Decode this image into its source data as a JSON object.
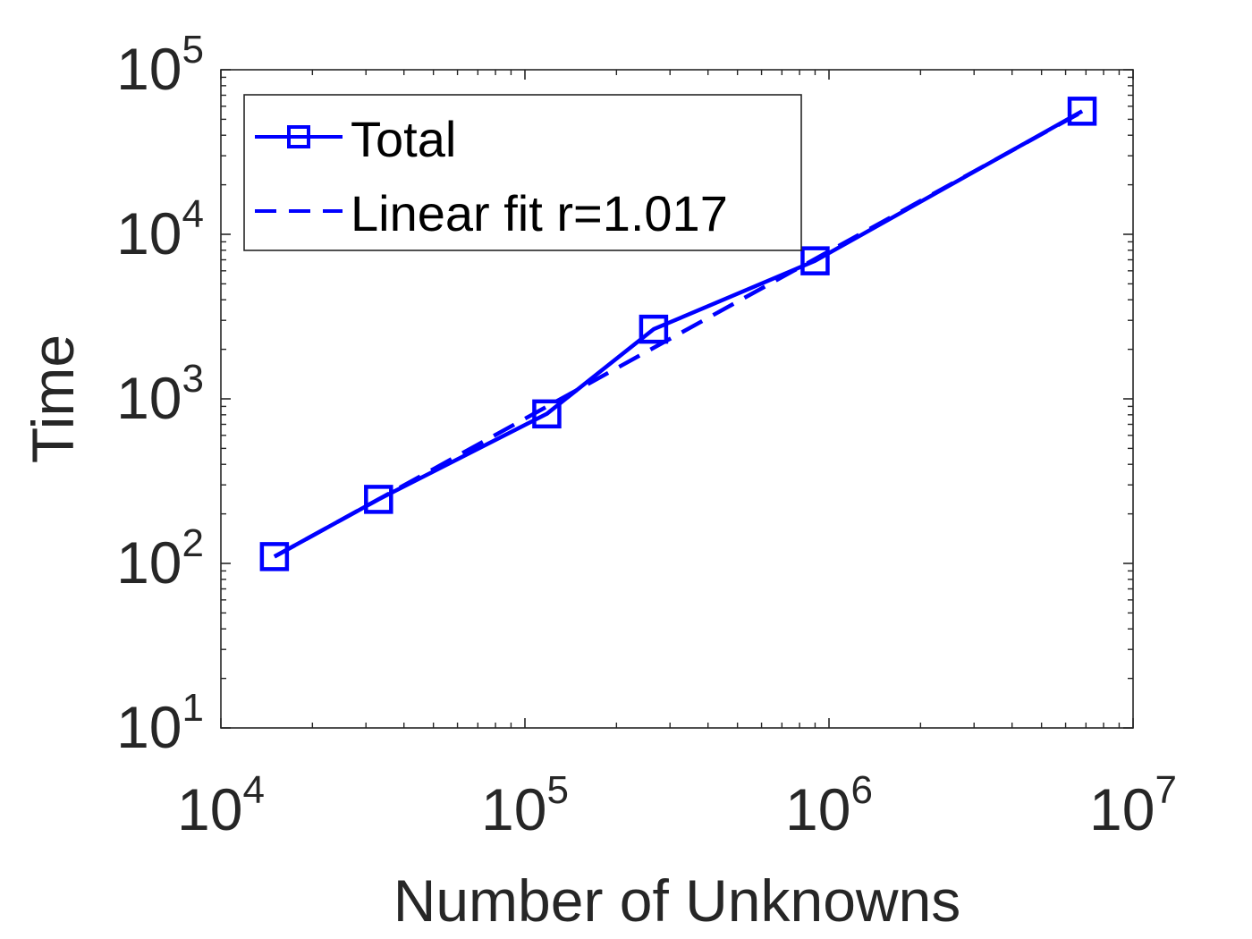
{
  "chart_data": {
    "type": "line",
    "xscale": "log",
    "yscale": "log",
    "xlabel": "Number of Unknowns",
    "ylabel": "Time",
    "xlim": [
      10000,
      10000000
    ],
    "ylim": [
      10,
      100000
    ],
    "xticks": [
      {
        "base": "10",
        "exp": "4",
        "value": 10000
      },
      {
        "base": "10",
        "exp": "5",
        "value": 100000
      },
      {
        "base": "10",
        "exp": "6",
        "value": 1000000
      },
      {
        "base": "10",
        "exp": "7",
        "value": 10000000
      }
    ],
    "yticks": [
      {
        "base": "10",
        "exp": "1",
        "value": 10
      },
      {
        "base": "10",
        "exp": "2",
        "value": 100
      },
      {
        "base": "10",
        "exp": "3",
        "value": 1000
      },
      {
        "base": "10",
        "exp": "4",
        "value": 10000
      },
      {
        "base": "10",
        "exp": "5",
        "value": 100000
      }
    ],
    "grid": false,
    "box": true,
    "legend_position": "top-left",
    "series": [
      {
        "name": "Total",
        "style": "solid",
        "marker": "square",
        "color": "#0000ff",
        "x": [
          15000,
          33000,
          118000,
          265000,
          900000,
          6800000
        ],
        "y": [
          110,
          245,
          810,
          2650,
          6900,
          56000
        ]
      },
      {
        "name": "Linear fit r=1.017",
        "style": "dashed",
        "marker": "none",
        "color": "#0000ff",
        "x": [
          15000,
          6800000
        ],
        "y": [
          110,
          55500
        ]
      }
    ]
  }
}
